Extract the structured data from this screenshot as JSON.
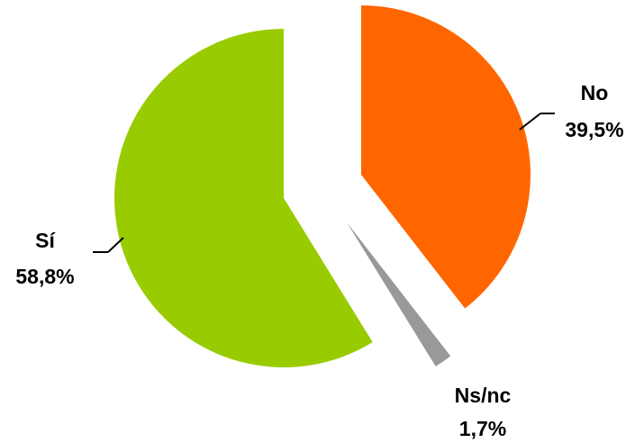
{
  "chart_data": {
    "type": "pie",
    "title": "",
    "slices": [
      {
        "label": "No",
        "value": 39.5,
        "value_label": "39,5%",
        "color": "#FF6600",
        "exploded": true
      },
      {
        "label": "Ns/nc",
        "value": 1.7,
        "value_label": "1,7%",
        "color": "#999999",
        "exploded": true
      },
      {
        "label": "Sí",
        "value": 58.8,
        "value_label": "58,8%",
        "color": "#99CC00",
        "exploded": false
      }
    ],
    "start_angle": "12 o'clock",
    "direction": "clockwise",
    "legend": "none",
    "data_labels": "outside with leader lines"
  }
}
